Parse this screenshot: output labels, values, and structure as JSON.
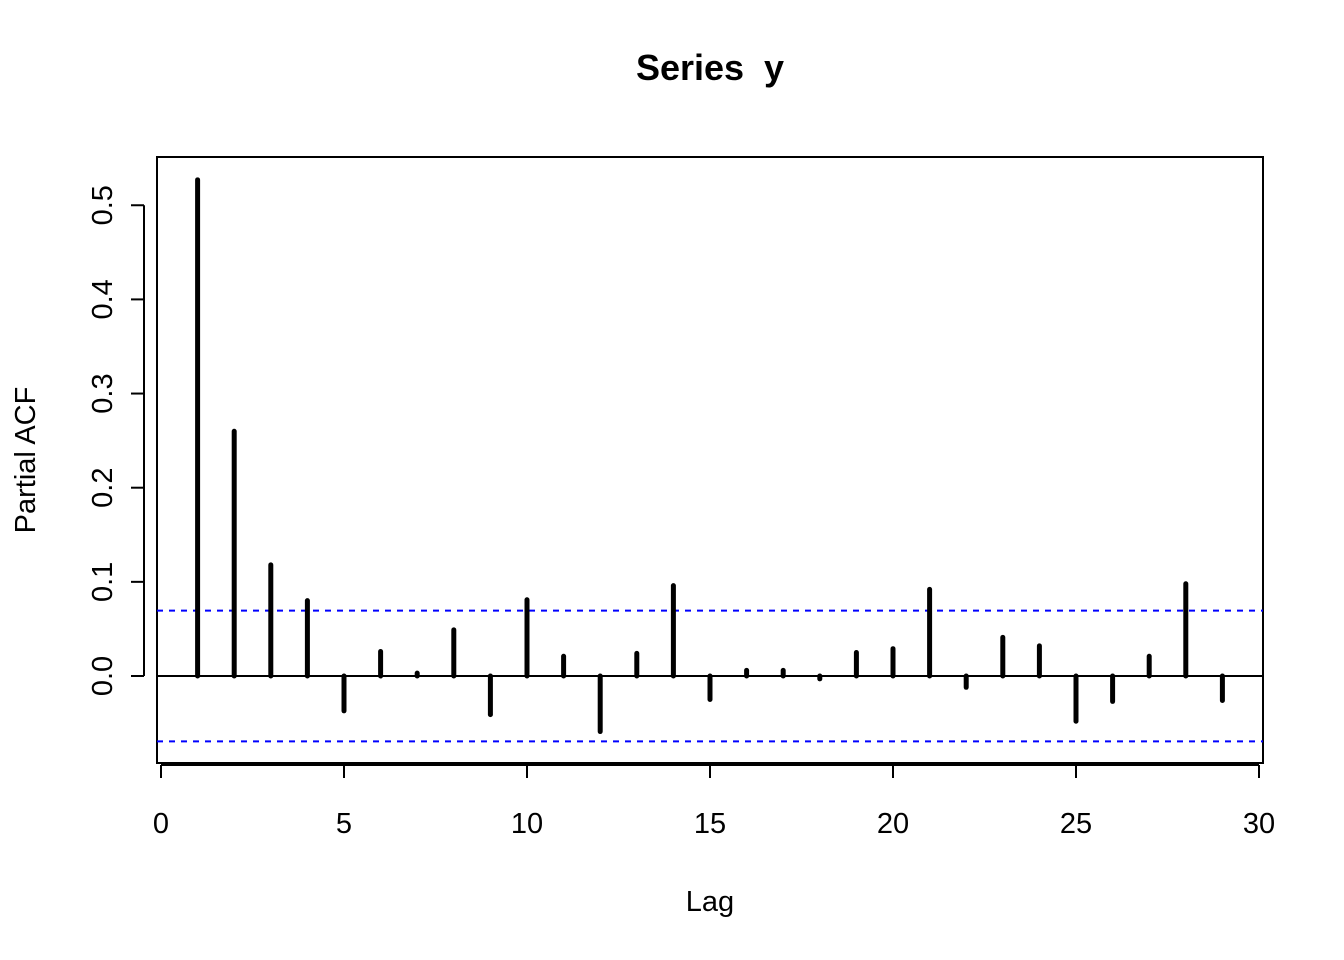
{
  "chart_data": {
    "type": "bar",
    "title": "Series  y",
    "xlabel": "Lag",
    "ylabel": "Partial ACF",
    "xlim": [
      0,
      30
    ],
    "ylim": [
      -0.093,
      0.55
    ],
    "x_ticks": [
      0,
      5,
      10,
      15,
      20,
      25,
      30
    ],
    "y_ticks": [
      0.0,
      0.1,
      0.2,
      0.3,
      0.4,
      0.5
    ],
    "x_tick_labels": [
      "0",
      "5",
      "10",
      "15",
      "20",
      "25",
      "30"
    ],
    "y_tick_labels": [
      "0.0",
      "0.1",
      "0.2",
      "0.3",
      "0.4",
      "0.5"
    ],
    "lags": [
      1,
      2,
      3,
      4,
      5,
      6,
      7,
      8,
      9,
      10,
      11,
      12,
      13,
      14,
      15,
      16,
      17,
      18,
      19,
      20,
      21,
      22,
      23,
      24,
      25,
      26,
      27,
      28,
      29
    ],
    "values": [
      0.527,
      0.26,
      0.118,
      0.08,
      -0.037,
      0.026,
      0.003,
      0.049,
      -0.041,
      0.081,
      0.021,
      -0.059,
      0.024,
      0.096,
      -0.025,
      0.006,
      0.006,
      -0.003,
      0.025,
      0.029,
      0.092,
      -0.012,
      0.041,
      0.032,
      -0.048,
      -0.027,
      0.021,
      0.098,
      -0.026
    ],
    "confidence_bound": 0.0695,
    "zero_line": true,
    "grid": false,
    "colors": {
      "bars": "#000000",
      "confidence_lines": "#0000ff",
      "zero_line": "#000000",
      "frame": "#000000"
    }
  }
}
